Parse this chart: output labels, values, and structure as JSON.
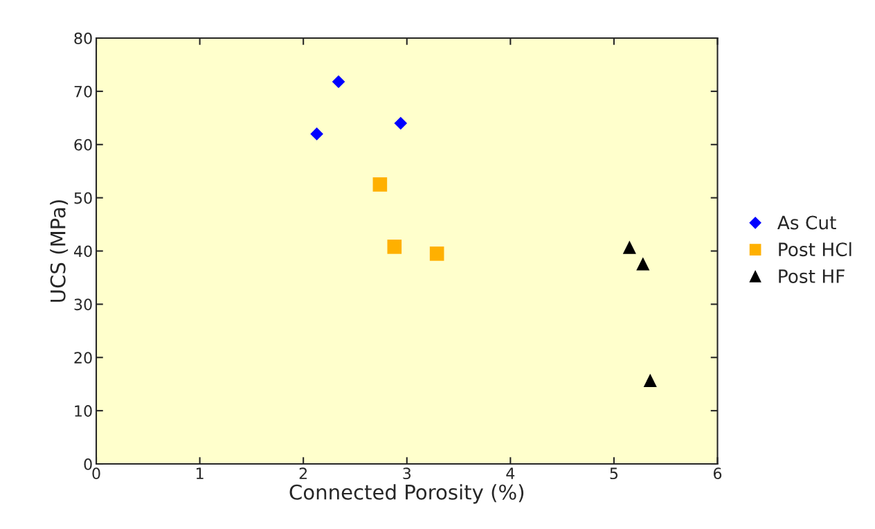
{
  "chart_data": {
    "type": "scatter",
    "xlabel": "Connected Porosity (%)",
    "ylabel": "UCS (MPa)",
    "xlim": [
      0,
      6
    ],
    "ylim": [
      0,
      80
    ],
    "xticks": [
      0,
      1,
      2,
      3,
      4,
      5,
      6
    ],
    "yticks": [
      0,
      10,
      20,
      30,
      40,
      50,
      60,
      70,
      80
    ],
    "grid": false,
    "legend": "right",
    "series": [
      {
        "name": "As Cut",
        "color": "#0000ff",
        "marker": "diamond",
        "x": [
          2.13,
          2.34,
          2.94
        ],
        "values": [
          62,
          71.8,
          64
        ]
      },
      {
        "name": "Post HCl",
        "color": "#ffb000",
        "marker": "square",
        "x": [
          2.74,
          2.88,
          3.29
        ],
        "values": [
          52.5,
          40.8,
          39.5
        ]
      },
      {
        "name": "Post HF",
        "color": "#000000",
        "marker": "triangle",
        "x": [
          5.15,
          5.28,
          5.35
        ],
        "values": [
          40.7,
          37.6,
          15.7
        ]
      }
    ]
  }
}
